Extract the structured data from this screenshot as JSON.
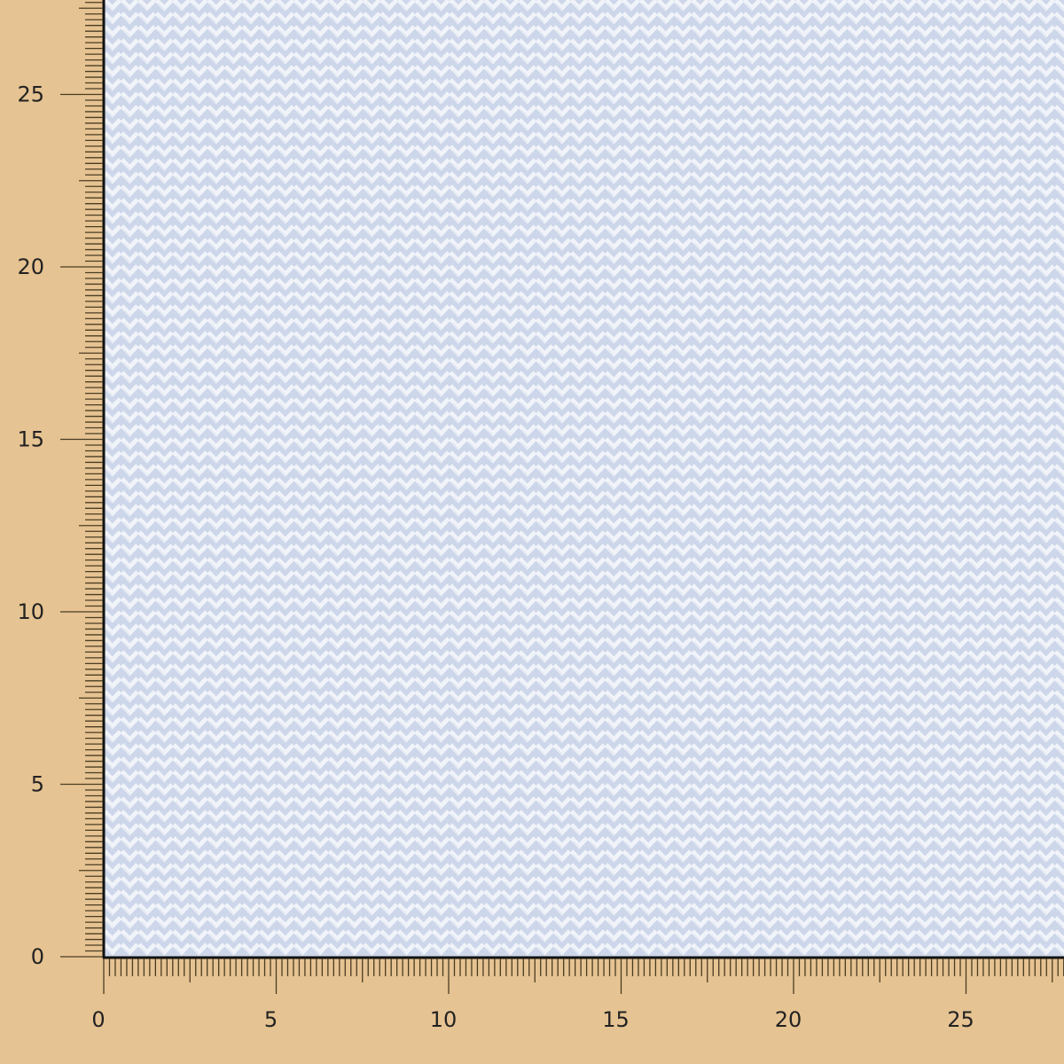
{
  "colors": {
    "ruler_background": "#e6c392",
    "tick": "#4a3d22",
    "fabric_base": "#c9d3e8",
    "fabric_highlight": "#f6f7fa",
    "border": "#111111"
  },
  "fabric": {
    "pattern": "herringbone"
  },
  "x_axis": {
    "labels": [
      "0",
      "5",
      "10",
      "15",
      "20",
      "25"
    ],
    "range": [
      0,
      27.7
    ]
  },
  "y_axis": {
    "labels": [
      "0",
      "5",
      "10",
      "15",
      "20",
      "25"
    ],
    "range": [
      0,
      27.7
    ]
  }
}
